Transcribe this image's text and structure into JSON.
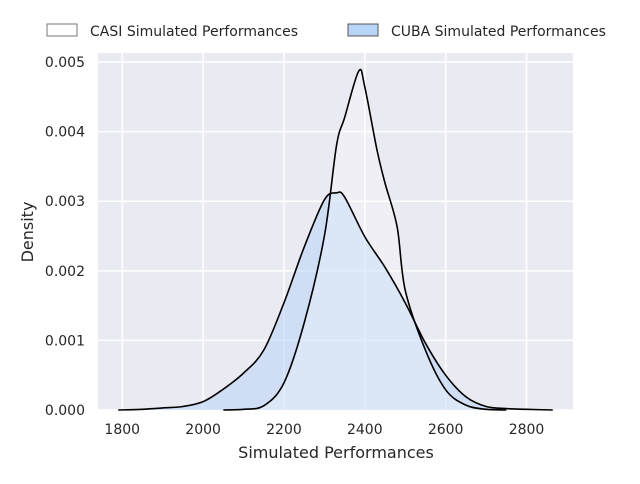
{
  "chart_data": {
    "type": "area",
    "title": "",
    "xlabel": "Simulated Performances",
    "ylabel": "Density",
    "xlim": [
      1740,
      2915
    ],
    "ylim": [
      0,
      0.00513
    ],
    "xticks": [
      1800,
      2000,
      2200,
      2400,
      2600,
      2800
    ],
    "xtick_labels": [
      "1800",
      "2000",
      "2200",
      "2400",
      "2600",
      "2800"
    ],
    "yticks": [
      0,
      0.001,
      0.002,
      0.003,
      0.004,
      0.005
    ],
    "ytick_labels": [
      "0.000",
      "0.001",
      "0.002",
      "0.003",
      "0.004",
      "0.005"
    ],
    "grid": true,
    "legend_position": "top-center",
    "series": [
      {
        "name": "CASI Simulated Performances",
        "fill": "#ffffff",
        "x": [
          2050,
          2100,
          2150,
          2200,
          2250,
          2300,
          2330,
          2350,
          2385,
          2400,
          2430,
          2450,
          2480,
          2500,
          2550,
          2600,
          2650,
          2700,
          2750
        ],
        "y": [
          0,
          1e-05,
          6e-05,
          0.00039,
          0.00125,
          0.0025,
          0.0038,
          0.0042,
          0.00487,
          0.00464,
          0.00374,
          0.00326,
          0.00263,
          0.00172,
          0.00086,
          0.00029,
          7e-05,
          1e-05,
          0
        ]
      },
      {
        "name": "CUBA Simulated Performances",
        "fill": "#b8d4f7",
        "x": [
          1790,
          1850,
          1900,
          1950,
          2000,
          2050,
          2100,
          2150,
          2200,
          2250,
          2300,
          2330,
          2350,
          2400,
          2450,
          2500,
          2550,
          2600,
          2650,
          2700,
          2750,
          2800,
          2865
        ],
        "y": [
          0,
          1e-05,
          3e-05,
          5e-05,
          0.00012,
          0.0003,
          0.00053,
          0.00086,
          0.00154,
          0.00234,
          0.00302,
          0.00312,
          0.00306,
          0.00249,
          0.00205,
          0.00154,
          0.00096,
          0.0005,
          0.00019,
          5e-05,
          2e-05,
          1e-05,
          0
        ]
      }
    ]
  }
}
